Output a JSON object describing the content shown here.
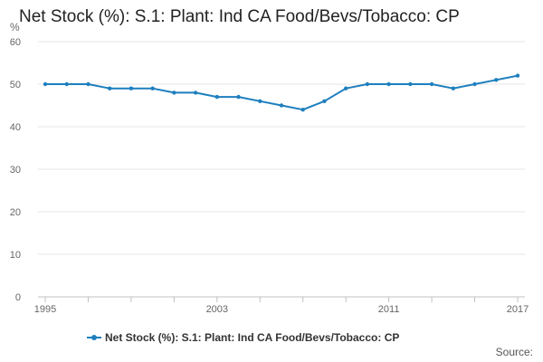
{
  "colors": {
    "series": "#1e7fbf",
    "grid": "#e6e6e6",
    "axis": "#c0c0c0"
  },
  "chart_data": {
    "type": "line",
    "title": "Net Stock (%): S.1: Plant: Ind CA Food/Bevs/Tobacco: CP",
    "unit_label": "%",
    "xlabel": "",
    "ylabel": "%",
    "x": [
      1995,
      1996,
      1997,
      1998,
      1999,
      2000,
      2001,
      2002,
      2003,
      2004,
      2005,
      2006,
      2007,
      2008,
      2009,
      2010,
      2011,
      2012,
      2013,
      2014,
      2015,
      2016,
      2017
    ],
    "x_tick_labels": [
      "1995",
      "2003",
      "2011",
      "2017"
    ],
    "ylim": [
      0,
      60
    ],
    "y_ticks": [
      "0",
      "10",
      "20",
      "30",
      "40",
      "50",
      "60"
    ],
    "grid": true,
    "legend_position": "bottom",
    "series": [
      {
        "name": "Net Stock (%): S.1: Plant: Ind CA Food/Bevs/Tobacco: CP",
        "values": [
          50,
          50,
          50,
          49,
          49,
          49,
          48,
          48,
          47,
          47,
          46,
          45,
          44,
          46,
          49,
          50,
          50,
          50,
          50,
          49,
          50,
          51,
          52
        ]
      }
    ]
  },
  "source_label": "Source:"
}
